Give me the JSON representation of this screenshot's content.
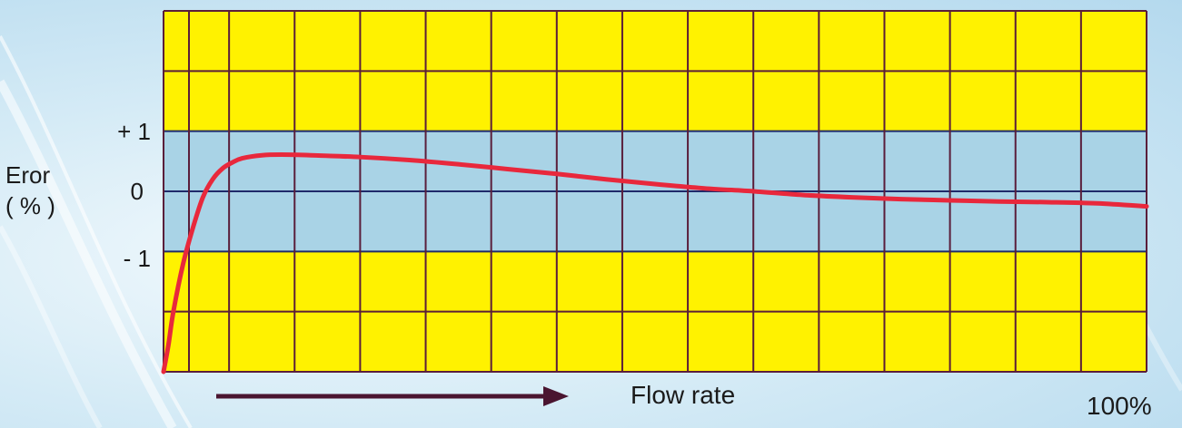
{
  "chart_data": {
    "type": "line",
    "title": "",
    "ylabel_line1": "Eror",
    "ylabel_line2": "( % )",
    "xlabel": "Flow rate",
    "x_end_label": "100%",
    "y_ticks": [
      {
        "value": 1,
        "label": "+ 1"
      },
      {
        "value": 0,
        "label": "0"
      },
      {
        "value": -1,
        "label": "- 1"
      }
    ],
    "ylim": [
      -3,
      3
    ],
    "xlim": [
      0,
      100
    ],
    "grid": true,
    "band": {
      "from": -1,
      "to": 1,
      "color": "#a9d3e6"
    },
    "outer_color": "#fff200",
    "grid_color": "#5a1e3a",
    "series": [
      {
        "color": "#e8283c",
        "x": [
          0,
          0.5,
          1,
          2,
          3,
          4,
          5,
          6,
          7,
          8,
          10,
          12,
          15,
          20,
          25,
          30,
          35,
          40,
          45,
          50,
          55,
          60,
          65,
          70,
          75,
          80,
          85,
          90,
          95,
          100
        ],
        "y": [
          -3.0,
          -2.55,
          -2.0,
          -1.2,
          -0.6,
          -0.1,
          0.2,
          0.38,
          0.48,
          0.55,
          0.6,
          0.61,
          0.6,
          0.57,
          0.52,
          0.45,
          0.37,
          0.29,
          0.2,
          0.12,
          0.05,
          0.0,
          -0.06,
          -0.1,
          -0.13,
          -0.15,
          -0.17,
          -0.18,
          -0.2,
          -0.25
        ]
      }
    ]
  }
}
